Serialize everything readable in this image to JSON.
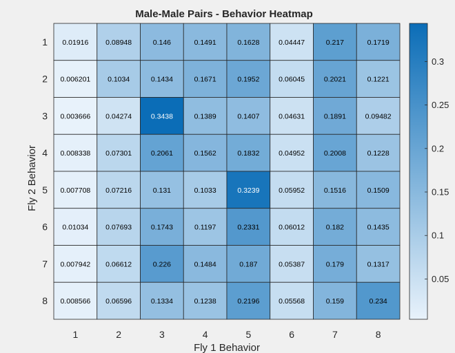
{
  "chart_data": {
    "type": "heatmap",
    "title": "Male-Male Pairs - Behavior Heatmap",
    "xlabel": "Fly 1 Behavior",
    "ylabel": "Fly 2 Behavior",
    "x_categories": [
      "1",
      "2",
      "3",
      "4",
      "5",
      "6",
      "7",
      "8"
    ],
    "y_categories": [
      "1",
      "2",
      "3",
      "4",
      "5",
      "6",
      "7",
      "8"
    ],
    "values": [
      [
        0.01916,
        0.08948,
        0.146,
        0.1491,
        0.1628,
        0.04447,
        0.217,
        0.1719
      ],
      [
        0.006201,
        0.1034,
        0.1434,
        0.1671,
        0.1952,
        0.06045,
        0.2021,
        0.1221
      ],
      [
        0.003666,
        0.04274,
        0.3438,
        0.1389,
        0.1407,
        0.04631,
        0.1891,
        0.09482
      ],
      [
        0.008338,
        0.07301,
        0.2061,
        0.1562,
        0.1832,
        0.04952,
        0.2008,
        0.1228
      ],
      [
        0.007708,
        0.07216,
        0.131,
        0.1033,
        0.3239,
        0.05952,
        0.1516,
        0.1509
      ],
      [
        0.01034,
        0.07693,
        0.1743,
        0.1197,
        0.2331,
        0.06012,
        0.182,
        0.1435
      ],
      [
        0.007942,
        0.06612,
        0.226,
        0.1484,
        0.187,
        0.05387,
        0.179,
        0.1317
      ],
      [
        0.008566,
        0.06596,
        0.1334,
        0.1238,
        0.2196,
        0.05568,
        0.159,
        0.234
      ]
    ],
    "cell_labels": [
      [
        "0.01916",
        "0.08948",
        "0.146",
        "0.1491",
        "0.1628",
        "0.04447",
        "0.217",
        "0.1719"
      ],
      [
        "0.006201",
        "0.1034",
        "0.1434",
        "0.1671",
        "0.1952",
        "0.06045",
        "0.2021",
        "0.1221"
      ],
      [
        "0.003666",
        "0.04274",
        "0.3438",
        "0.1389",
        "0.1407",
        "0.04631",
        "0.1891",
        "0.09482"
      ],
      [
        "0.008338",
        "0.07301",
        "0.2061",
        "0.1562",
        "0.1832",
        "0.04952",
        "0.2008",
        "0.1228"
      ],
      [
        "0.007708",
        "0.07216",
        "0.131",
        "0.1033",
        "0.3239",
        "0.05952",
        "0.1516",
        "0.1509"
      ],
      [
        "0.01034",
        "0.07693",
        "0.1743",
        "0.1197",
        "0.2331",
        "0.06012",
        "0.182",
        "0.1435"
      ],
      [
        "0.007942",
        "0.06612",
        "0.226",
        "0.1484",
        "0.187",
        "0.05387",
        "0.179",
        "0.1317"
      ],
      [
        "0.008566",
        "0.06596",
        "0.1334",
        "0.1238",
        "0.2196",
        "0.05568",
        "0.159",
        "0.234"
      ]
    ],
    "colorbar": {
      "range": [
        0.003666,
        0.3438
      ],
      "ticks": [
        0.05,
        0.1,
        0.15,
        0.2,
        0.25,
        0.3
      ],
      "tick_labels": [
        "0.05",
        "0.1",
        "0.15",
        "0.2",
        "0.25",
        "0.3"
      ]
    },
    "colormap": {
      "low": "#e8f2fb",
      "high": "#0b6db7"
    },
    "colors": {
      "background": "#f0f0f0",
      "text": "#262626",
      "cell_border": "#262626"
    }
  }
}
